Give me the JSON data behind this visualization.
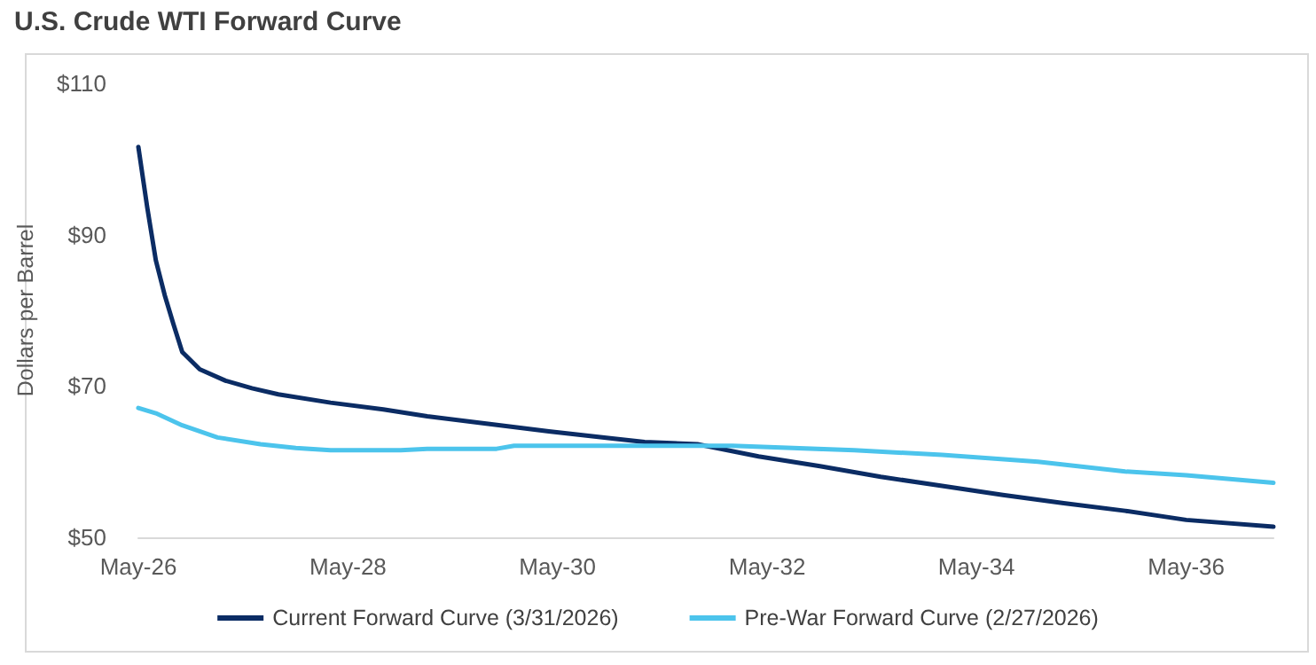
{
  "chart_data": {
    "type": "line",
    "title": "U.S. Crude WTI Forward Curve",
    "ylabel": "Dollars per Barrel",
    "xlim": [
      "2026-05",
      "2037-03"
    ],
    "xticks": [
      {
        "value": "2026-05",
        "label": "May-26"
      },
      {
        "value": "2028-05",
        "label": "May-28"
      },
      {
        "value": "2030-05",
        "label": "May-30"
      },
      {
        "value": "2032-05",
        "label": "May-32"
      },
      {
        "value": "2034-05",
        "label": "May-34"
      },
      {
        "value": "2036-05",
        "label": "May-36"
      }
    ],
    "ylim": [
      50,
      110
    ],
    "yticks": [
      {
        "value": 50,
        "label": "$50"
      },
      {
        "value": 70,
        "label": "$70"
      },
      {
        "value": 90,
        "label": "$90"
      },
      {
        "value": 110,
        "label": "$110"
      }
    ],
    "grid": false,
    "legend": "bottom",
    "marker": "none",
    "line_style": "solid",
    "series": [
      {
        "name": "Current Forward Curve (3/31/2026)",
        "color": "#0b2c64",
        "x": [
          "2026-05",
          "2026-06",
          "2026-07",
          "2026-08",
          "2026-09",
          "2026-10",
          "2026-12",
          "2027-03",
          "2027-06",
          "2027-09",
          "2028-03",
          "2028-09",
          "2029-02",
          "2029-09",
          "2030-04",
          "2030-11",
          "2031-03",
          "2031-09",
          "2032-04",
          "2032-11",
          "2033-06",
          "2034-01",
          "2034-08",
          "2035-03",
          "2035-10",
          "2036-05",
          "2037-03"
        ],
        "values": [
          101.6,
          93.6,
          86.6,
          82,
          78.1,
          74.5,
          72.2,
          70.7,
          69.7,
          68.9,
          67.8,
          66.9,
          66,
          65,
          64,
          63.1,
          62.6,
          62.3,
          60.7,
          59.4,
          58,
          56.8,
          55.6,
          54.5,
          53.5,
          52.3,
          51.4
        ]
      },
      {
        "name": "Pre-War Forward Curve (2/27/2026)",
        "color": "#4cc4ec",
        "x": [
          "2026-05",
          "2026-07",
          "2026-10",
          "2027-02",
          "2027-07",
          "2027-11",
          "2028-03",
          "2028-11",
          "2029-02",
          "2029-10",
          "2029-12",
          "2031-05",
          "2032-01",
          "2033-03",
          "2034-01",
          "2034-12",
          "2035-10",
          "2036-05",
          "2037-03"
        ],
        "values": [
          67.1,
          66.4,
          64.8,
          63.2,
          62.3,
          61.8,
          61.5,
          61.5,
          61.7,
          61.7,
          62.1,
          62.1,
          62.1,
          61.5,
          60.9,
          60,
          58.7,
          58.2,
          57.2
        ]
      }
    ]
  }
}
